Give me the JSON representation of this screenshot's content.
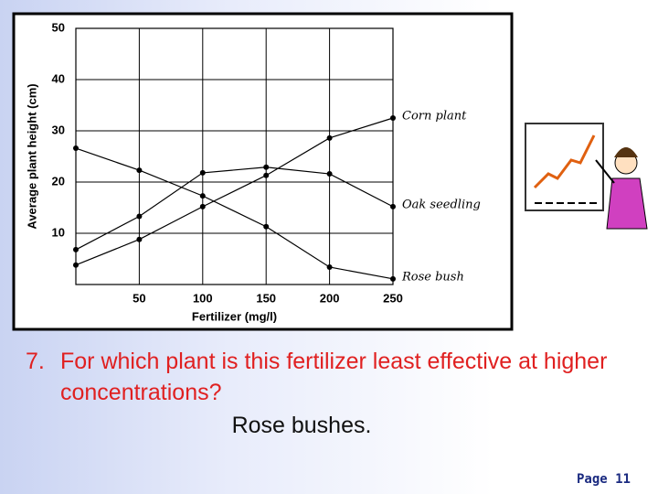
{
  "chart_data": {
    "type": "line",
    "x_label": "Fertilizer (mg/l)",
    "y_label": "Average plant height (cm)",
    "x": [
      0,
      50,
      100,
      150,
      200,
      250
    ],
    "series": [
      {
        "name": "Corn plant",
        "color": "#000000",
        "values": [
          3.8,
          8.8,
          15.2,
          21.3,
          28.6,
          32.5
        ]
      },
      {
        "name": "Oak seedling",
        "color": "#000000",
        "values": [
          6.8,
          13.3,
          21.8,
          22.9,
          21.6,
          15.2
        ]
      },
      {
        "name": "Rose bush",
        "color": "#000000",
        "values": [
          26.6,
          22.3,
          17.3,
          11.3,
          3.4,
          1.1
        ]
      }
    ],
    "xlim": [
      0,
      250
    ],
    "xticks": [
      50,
      100,
      150,
      200,
      250
    ],
    "ylim": [
      0,
      50
    ],
    "yticks": [
      10,
      20,
      30,
      40,
      50
    ],
    "grid": true
  },
  "question": {
    "number": "7.",
    "text": "For which plant is this fertilizer least effective at higher concentrations?"
  },
  "answer": "Rose bushes.",
  "footer": "Page 11"
}
